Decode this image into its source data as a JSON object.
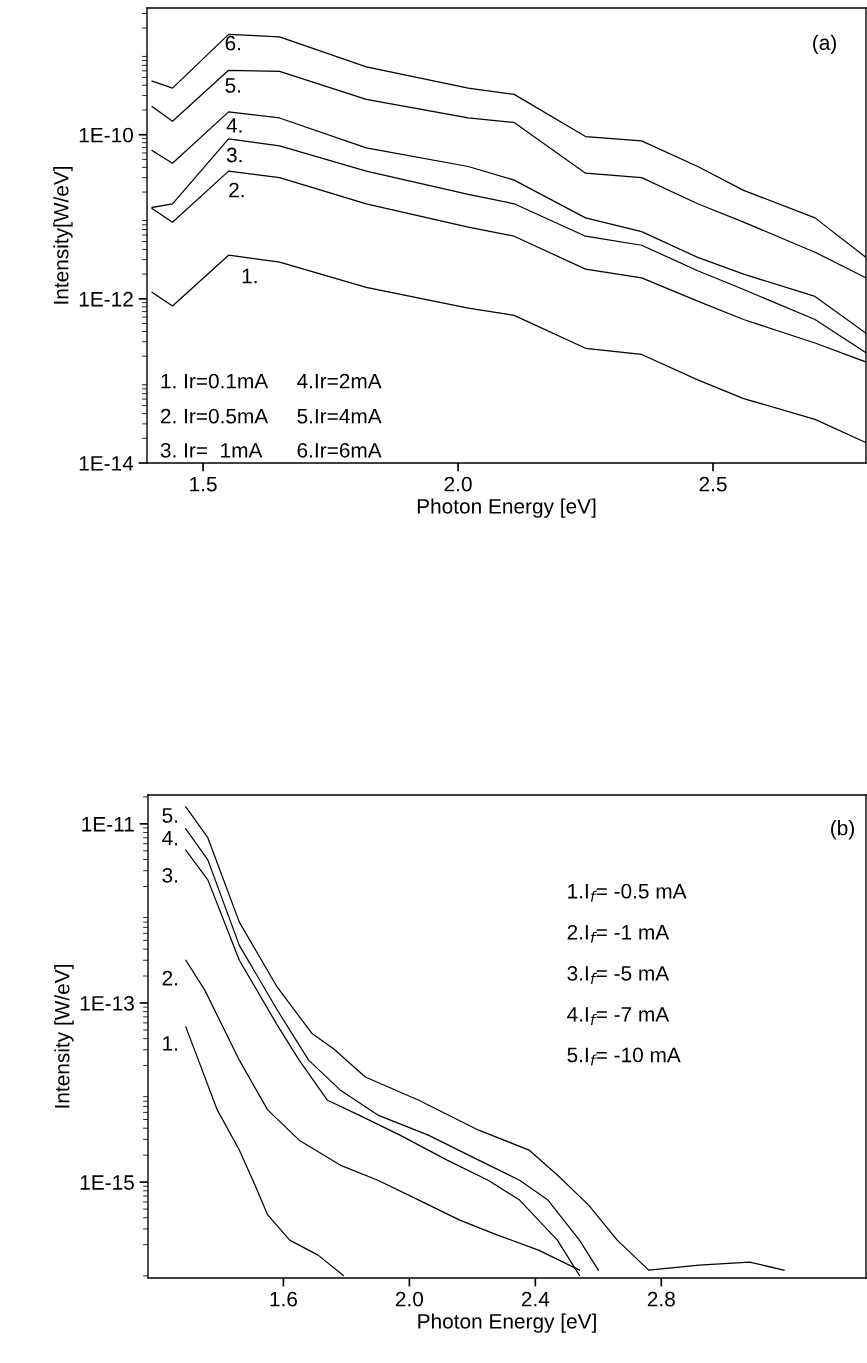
{
  "chart_data": [
    {
      "type": "line",
      "xlabel": "Photon Energy [eV]",
      "ylabel": "Intensity[W/eV]",
      "log": "y",
      "grid": false,
      "legend": false,
      "marker": "none",
      "line_style": "solid",
      "x": [
        1.4,
        1.44,
        1.55,
        1.65,
        1.82,
        2.02,
        2.11,
        2.25,
        2.36,
        2.47,
        2.56,
        2.7,
        2.8
      ],
      "xlim": [
        1.39,
        2.8
      ],
      "xticks": [
        {
          "value": 1.5,
          "label": "1.5"
        },
        {
          "value": 2.0,
          "label": "2.0"
        },
        {
          "value": 2.5,
          "label": "2.5"
        }
      ],
      "ylim": [
        1e-14,
        3.5e-09
      ],
      "yticks": [
        {
          "value": 1e-14,
          "label": "1E-14"
        },
        {
          "value": 1e-12,
          "label": "1E-12"
        },
        {
          "value": 1e-10,
          "label": "1E-10"
        }
      ],
      "series": [
        {
          "color": "#000000",
          "values": [
            1.2e-12,
            8.2e-13,
            3.4e-12,
            2.8e-12,
            1.38e-12,
            7.7e-13,
            6.3e-13,
            2.5e-13,
            2.1e-13,
            1.03e-13,
            6.1e-14,
            3.4e-14,
            1.77e-14
          ]
        },
        {
          "color": "#000000",
          "values": [
            1.26e-11,
            8.6e-12,
            3.6e-11,
            3e-11,
            1.44e-11,
            7.5e-12,
            5.8e-12,
            2.3e-12,
            1.8e-12,
            9.4e-13,
            5.6e-13,
            2.9e-13,
            1.7e-13
          ]
        },
        {
          "color": "#000000",
          "values": [
            1.3e-11,
            1.44e-11,
            8.9e-11,
            7.3e-11,
            3.6e-11,
            1.87e-11,
            1.44e-11,
            5.8e-12,
            4.5e-12,
            2.2e-12,
            1.3e-12,
            5.6e-13,
            2.2e-13
          ]
        },
        {
          "color": "#000000",
          "values": [
            6.4e-11,
            4.5e-11,
            1.9e-10,
            1.6e-10,
            6.9e-11,
            4.1e-11,
            2.8e-11,
            9.7e-12,
            6.6e-12,
            3.2e-12,
            2e-12,
            1.07e-12,
            3.8e-13
          ]
        },
        {
          "color": "#000000",
          "values": [
            2.2e-10,
            1.46e-10,
            6.1e-10,
            5.9e-10,
            2.7e-10,
            1.6e-10,
            1.41e-10,
            3.4e-11,
            3e-11,
            1.44e-11,
            8.6e-12,
            3.7e-12,
            1.8e-12
          ]
        },
        {
          "color": "#000000",
          "values": [
            4.5e-10,
            3.7e-10,
            1.67e-09,
            1.56e-09,
            6.7e-10,
            3.7e-10,
            3.1e-10,
            9.5e-11,
            8.4e-11,
            4.1e-11,
            2.1e-11,
            9.7e-12,
            3.2e-12
          ]
        }
      ],
      "annotations": [
        "(a)",
        "1. Ir=0.1mA",
        "4.Ir=2mA",
        "2. Ir=0.5mA",
        "5.Ir=4mA",
        "3. Ir=  1mA",
        "6.Ir=6mA",
        "1.",
        "2.",
        "3.",
        "4.",
        "5.",
        "6."
      ]
    },
    {
      "type": "line",
      "xlabel": "Photon Energy [eV]",
      "ylabel": "Intensity [W/eV]",
      "log": "y",
      "grid": false,
      "legend": false,
      "marker": "none",
      "line_style": "solid",
      "xlim": [
        1.17,
        3.45
      ],
      "xticks": [
        {
          "value": 1.6,
          "label": "1.6"
        },
        {
          "value": 2.0,
          "label": "2.0"
        },
        {
          "value": 2.4,
          "label": "2.4"
        },
        {
          "value": 2.8,
          "label": "2.8"
        }
      ],
      "ylim": [
        8.5e-17,
        2.1e-11
      ],
      "yticks": [
        {
          "value": 1e-15,
          "label": "1E-15"
        },
        {
          "value": 1e-13,
          "label": "1E-13"
        },
        {
          "value": 1e-11,
          "label": "1E-11"
        }
      ],
      "series": [
        {
          "color": "#000000",
          "x": [
            1.29,
            1.33,
            1.39,
            1.46,
            1.51,
            1.55,
            1.62,
            1.71,
            1.79
          ],
          "values": [
            5.4e-14,
            2.3e-14,
            6.4e-15,
            2.28e-15,
            9.2e-16,
            4.3e-16,
            2.25e-16,
            1.53e-16,
            9.1e-17
          ]
        },
        {
          "color": "#000000",
          "x": [
            1.29,
            1.35,
            1.46,
            1.55,
            1.65,
            1.78,
            1.9,
            2.03,
            2.16,
            2.28,
            2.41,
            2.54
          ],
          "values": [
            3e-13,
            1.4e-13,
            2.3e-14,
            6.4e-15,
            2.94e-15,
            1.55e-15,
            1.05e-15,
            6.3e-16,
            3.76e-16,
            2.56e-16,
            1.74e-16,
            1.04e-16
          ]
        },
        {
          "color": "#000000",
          "x": [
            1.29,
            1.36,
            1.46,
            1.58,
            1.65,
            1.74,
            1.84,
            1.97,
            2.12,
            2.25,
            2.35,
            2.47,
            2.54
          ],
          "values": [
            5.1e-12,
            2.37e-12,
            3e-13,
            5.7e-14,
            2.3e-14,
            8.2e-15,
            5.6e-15,
            3.35e-15,
            1.76e-15,
            1.05e-15,
            6.3e-16,
            2.25e-16,
            9.1e-17
          ]
        },
        {
          "color": "#000000",
          "x": [
            1.29,
            1.36,
            1.46,
            1.58,
            1.68,
            1.78,
            1.9,
            2.06,
            2.22,
            2.35,
            2.44,
            2.54,
            2.6
          ],
          "values": [
            8.8e-12,
            3.96e-12,
            4.4e-13,
            8.4e-14,
            2.3e-14,
            1.07e-14,
            5.6e-15,
            3.35e-15,
            1.76e-15,
            1.05e-15,
            6.3e-16,
            2.25e-16,
            1.04e-16
          ]
        },
        {
          "color": "#000000",
          "x": [
            1.29,
            1.36,
            1.46,
            1.58,
            1.69,
            1.76,
            1.86,
            2.03,
            2.22,
            2.38,
            2.47,
            2.57,
            2.66,
            2.76,
            2.92,
            3.08,
            3.19
          ],
          "values": [
            1.55e-11,
            7e-12,
            8e-13,
            1.51e-13,
            4.6e-14,
            3.06e-14,
            1.49e-14,
            8.2e-15,
            3.8e-15,
            2.28e-15,
            1.2e-15,
            5.5e-16,
            2.25e-16,
            1.04e-16,
            1.18e-16,
            1.28e-16,
            1.04e-16
          ]
        }
      ],
      "annotations": [
        "(b)",
        "1.I$_{f}$= -0.5 mA",
        "2.I$_{f}$= -1 mA",
        "3.I$_{f}$= -5 mA",
        "4.I$_{f}$= -7 mA",
        "5.I$_{f}$= -10 mA",
        "1.",
        "2.",
        "3.",
        "4.",
        "5."
      ]
    }
  ]
}
